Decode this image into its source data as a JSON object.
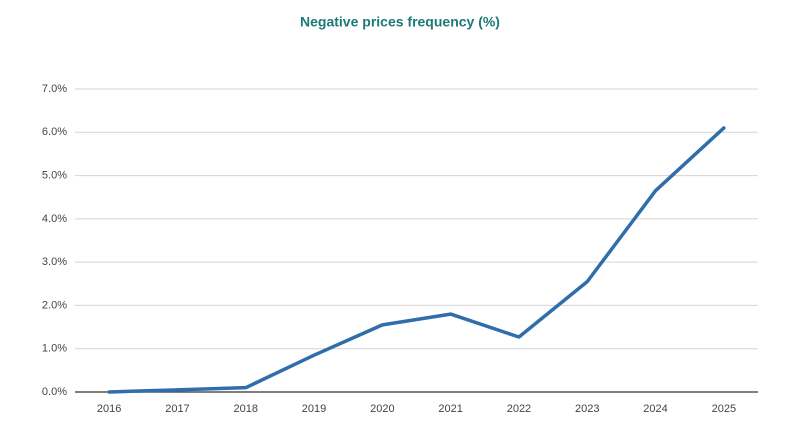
{
  "chart_data": {
    "type": "line",
    "title": "Negative prices frequency (%)",
    "categories": [
      "2016",
      "2017",
      "2018",
      "2019",
      "2020",
      "2021",
      "2022",
      "2023",
      "2024",
      "2025"
    ],
    "series": [
      {
        "color": "#2f6eab",
        "values": [
          0.0,
          0.05,
          0.1,
          0.85,
          1.55,
          1.8,
          1.27,
          2.55,
          4.65,
          6.1
        ]
      }
    ],
    "ylim": [
      0,
      7
    ],
    "yticks": [
      {
        "value": 0,
        "label": "0.0%"
      },
      {
        "value": 1,
        "label": "1.0%"
      },
      {
        "value": 2,
        "label": "2.0%"
      },
      {
        "value": 3,
        "label": "3.0%"
      },
      {
        "value": 4,
        "label": "4.0%"
      },
      {
        "value": 5,
        "label": "5.0%"
      },
      {
        "value": 6,
        "label": "6.0%"
      },
      {
        "value": 7,
        "label": "7.0%"
      }
    ],
    "grid": true
  }
}
